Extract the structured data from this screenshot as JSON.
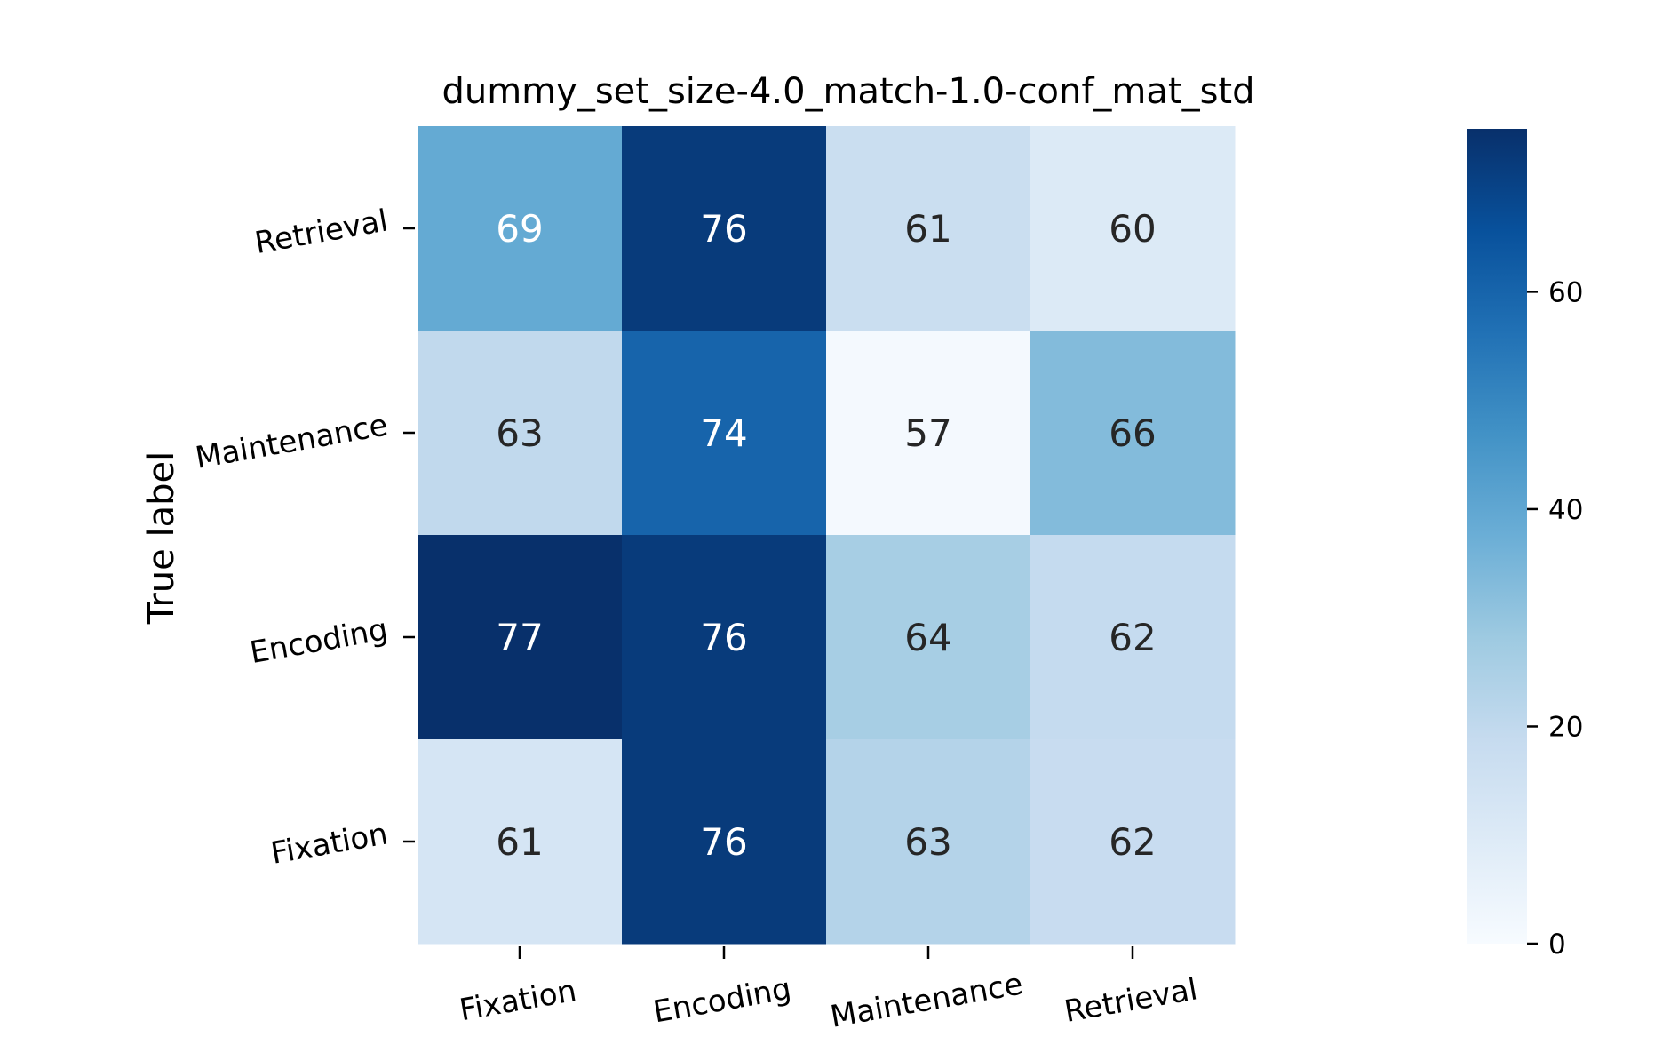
{
  "chart_data": {
    "type": "heatmap",
    "title": "dummy_set_size-4.0_match-1.0-conf_mat_std",
    "xlabel": "",
    "ylabel": "True label",
    "x_categories": [
      "Fixation",
      "Encoding",
      "Maintenance",
      "Retrieval"
    ],
    "y_categories": [
      "Retrieval",
      "Maintenance",
      "Encoding",
      "Fixation"
    ],
    "cells": [
      {
        "row": "Retrieval",
        "col": "Fixation",
        "label": "69",
        "color_value": 39
      },
      {
        "row": "Retrieval",
        "col": "Encoding",
        "label": "76",
        "color_value": 72
      },
      {
        "row": "Retrieval",
        "col": "Maintenance",
        "label": "61",
        "color_value": 17
      },
      {
        "row": "Retrieval",
        "col": "Retrieval",
        "label": "60",
        "color_value": 10
      },
      {
        "row": "Maintenance",
        "col": "Fixation",
        "label": "63",
        "color_value": 20
      },
      {
        "row": "Maintenance",
        "col": "Encoding",
        "label": "74",
        "color_value": 60
      },
      {
        "row": "Maintenance",
        "col": "Maintenance",
        "label": "57",
        "color_value": 1
      },
      {
        "row": "Maintenance",
        "col": "Retrieval",
        "label": "66",
        "color_value": 33
      },
      {
        "row": "Encoding",
        "col": "Fixation",
        "label": "77",
        "color_value": 75
      },
      {
        "row": "Encoding",
        "col": "Encoding",
        "label": "76",
        "color_value": 72
      },
      {
        "row": "Encoding",
        "col": "Maintenance",
        "label": "64",
        "color_value": 26
      },
      {
        "row": "Encoding",
        "col": "Retrieval",
        "label": "62",
        "color_value": 19
      },
      {
        "row": "Fixation",
        "col": "Fixation",
        "label": "61",
        "color_value": 13
      },
      {
        "row": "Fixation",
        "col": "Encoding",
        "label": "76",
        "color_value": 72
      },
      {
        "row": "Fixation",
        "col": "Maintenance",
        "label": "63",
        "color_value": 23
      },
      {
        "row": "Fixation",
        "col": "Retrieval",
        "label": "62",
        "color_value": 18
      }
    ],
    "colorbar": {
      "range": [
        0,
        75
      ],
      "ticks": [
        0,
        20,
        40,
        60
      ],
      "colormap": "Blues",
      "colors": [
        "#f7fbff",
        "#deebf7",
        "#c6dbef",
        "#9ecae1",
        "#6baed6",
        "#4292c6",
        "#2171b5",
        "#08519c",
        "#08306b"
      ]
    },
    "grid": false,
    "legend": "none"
  }
}
